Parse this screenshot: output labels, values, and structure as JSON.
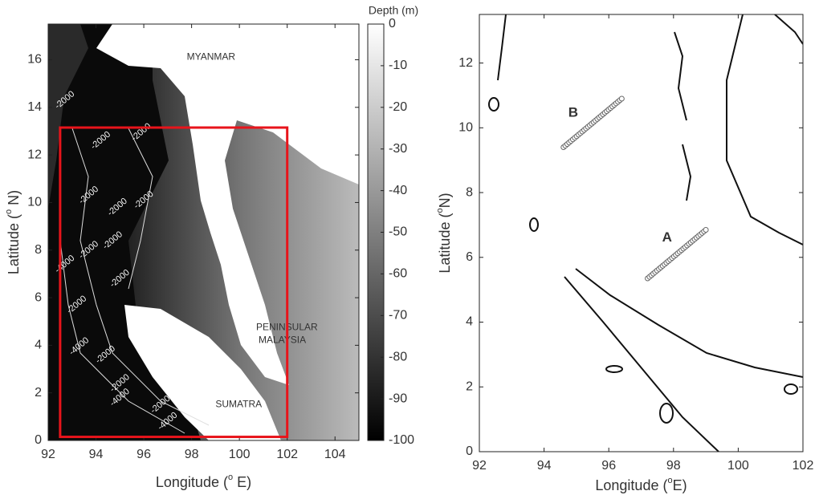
{
  "panels": [
    {
      "xlim": [
        92,
        105
      ],
      "ylim": [
        0,
        17.5
      ],
      "xticks": [
        92,
        94,
        96,
        98,
        100,
        102,
        104
      ],
      "yticks": [
        0,
        2,
        4,
        6,
        8,
        10,
        12,
        14,
        16
      ],
      "xlabel": {
        "pre": "Longitude (",
        "sup": "o",
        "post": " E)"
      },
      "ylabel": {
        "pre": "Latitude (",
        "sup": "o",
        "post": " N)"
      },
      "labels": [
        {
          "text": "MYANMAR",
          "lon": 97.8,
          "lat": 16.1
        },
        {
          "text": "PENINSULAR",
          "lon": 100.7,
          "lat": 4.75
        },
        {
          "text": "MALAYSIA",
          "lon": 100.8,
          "lat": 4.2
        },
        {
          "text": "SUMATRA",
          "lon": 99.0,
          "lat": 1.5
        }
      ],
      "contour_labels": [
        {
          "text": "-2000",
          "lon": 92.7,
          "lat": 14.3
        },
        {
          "text": "-2000",
          "lon": 94.2,
          "lat": 12.6
        },
        {
          "text": "-2000",
          "lon": 95.9,
          "lat": 12.95
        },
        {
          "text": "-2000",
          "lon": 93.7,
          "lat": 10.3
        },
        {
          "text": "-2000",
          "lon": 94.9,
          "lat": 9.8
        },
        {
          "text": "-2000",
          "lon": 96.0,
          "lat": 10.1
        },
        {
          "text": "-2000",
          "lon": 93.7,
          "lat": 8.0
        },
        {
          "text": "-2000",
          "lon": 94.7,
          "lat": 8.4
        },
        {
          "text": "-2000",
          "lon": 95.0,
          "lat": 6.8
        },
        {
          "text": "-4000",
          "lon": 92.7,
          "lat": 7.4
        },
        {
          "text": "-2000",
          "lon": 93.2,
          "lat": 5.7
        },
        {
          "text": "-4000",
          "lon": 93.3,
          "lat": 3.95
        },
        {
          "text": "-2000",
          "lon": 94.4,
          "lat": 3.6
        },
        {
          "text": "-2000",
          "lon": 95.0,
          "lat": 2.4
        },
        {
          "text": "-4000",
          "lon": 95.0,
          "lat": 1.8
        },
        {
          "text": "-2000",
          "lon": 96.7,
          "lat": 1.5
        },
        {
          "text": "-4000",
          "lon": 97.0,
          "lat": 0.8
        }
      ],
      "box": {
        "lon": [
          92.5,
          102
        ],
        "lat": [
          0.15,
          13.15
        ],
        "color": "#e8141b"
      },
      "colorbar": {
        "title": "Depth (m)",
        "lim": [
          -100,
          0
        ],
        "ticks": [
          0,
          -10,
          -20,
          -30,
          -40,
          -50,
          -60,
          -70,
          -80,
          -90,
          -100
        ]
      }
    },
    {
      "xlim": [
        92,
        102
      ],
      "ylim": [
        0,
        13.5
      ],
      "xticks": [
        92,
        94,
        96,
        98,
        100,
        102
      ],
      "yticks": [
        0,
        2,
        4,
        6,
        8,
        10,
        12
      ],
      "xlabel": {
        "pre": "Longitude (",
        "sup": "o",
        "post": "E)"
      },
      "ylabel": {
        "pre": "Latitude (",
        "sup": "o",
        "post": "N)"
      },
      "transects": [
        {
          "name": "B",
          "lon": [
            94.6,
            96.4
          ],
          "lat": [
            9.4,
            10.9
          ],
          "label_lon": 94.9,
          "label_lat": 10.45
        },
        {
          "name": "A",
          "lon": [
            97.2,
            99.0
          ],
          "lat": [
            5.35,
            6.85
          ],
          "label_lon": 97.8,
          "label_lat": 6.6
        }
      ]
    }
  ]
}
